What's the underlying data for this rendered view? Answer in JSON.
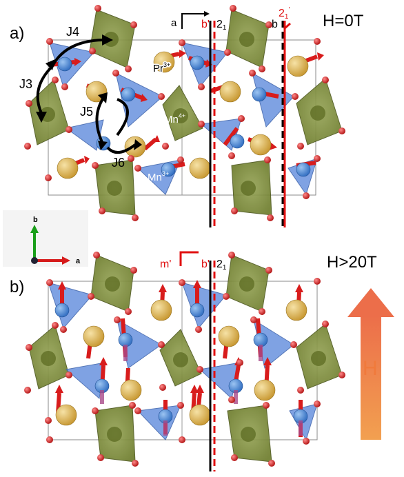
{
  "panel_a": {
    "label": "a)",
    "field": "H=0T",
    "axis_a": "a",
    "sym_bprime": "b'",
    "sym_21": "2",
    "sym_21_sub": "1",
    "axis_b": "b",
    "sym_21prime": "2",
    "sym_21prime_sub": "1",
    "sym_21prime_sup": "'",
    "ion_pr": "Pr",
    "ion_pr_sup": "3+",
    "ion_mn4": "Mn",
    "ion_mn4_sup": "4+",
    "ion_mn3": "Mn",
    "ion_mn3_sup": "3+",
    "exchange": [
      "J4",
      "J3",
      "J5",
      "J6"
    ]
  },
  "panel_b": {
    "label": "b)",
    "field": "H>20T",
    "sym_mprime": "m'",
    "sym_bprime": "b'",
    "sym_21": "2",
    "sym_21_sub": "1",
    "field_arrow_label": "H"
  },
  "crystal_axes": {
    "b": "b",
    "a": "a"
  },
  "colors": {
    "octahedron": "#7f8f3a",
    "tetrahedron": "#5b86d8",
    "pr_ion": "#d9b04a",
    "mn_ion": "#3f7fd0",
    "oxygen": "#cc1e1e",
    "spin": "#d81c1c",
    "symmetry_red": "#e01010",
    "field_arrow": "#ee7a45"
  }
}
